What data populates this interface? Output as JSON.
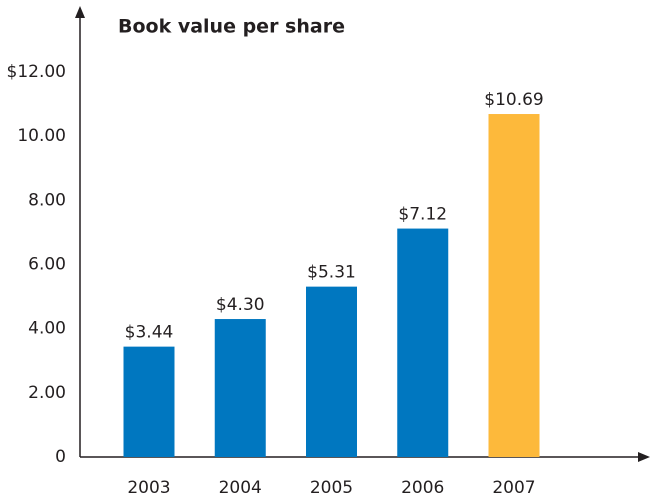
{
  "chart_data": {
    "type": "bar",
    "title": "Book value per share",
    "categories": [
      "2003",
      "2004",
      "2005",
      "2006",
      "2007"
    ],
    "values": [
      3.44,
      4.3,
      5.31,
      7.12,
      10.69
    ],
    "value_labels": [
      "$3.44",
      "$4.30",
      "$5.31",
      "$7.12",
      "$10.69"
    ],
    "colors": [
      "#0077c0",
      "#0077c0",
      "#0077c0",
      "#0077c0",
      "#fdb93b"
    ],
    "ylim": [
      0,
      12
    ],
    "yticks": [
      0,
      {
        "value": 2,
        "label": "2.00"
      },
      {
        "value": 4,
        "label": "4.00"
      },
      {
        "value": 6,
        "label": "6.00"
      },
      {
        "value": 8,
        "label": "8.00"
      },
      {
        "value": 10,
        "label": "10.00"
      },
      {
        "value": 12,
        "label": "$12.00"
      }
    ],
    "grid": false
  }
}
